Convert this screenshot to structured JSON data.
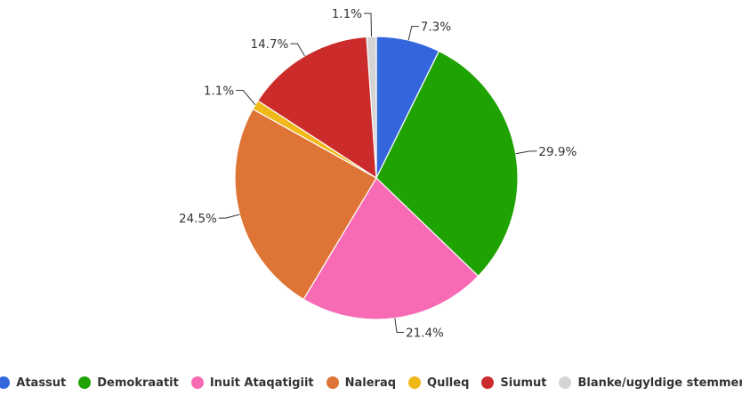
{
  "chart_data": {
    "type": "pie",
    "title": "",
    "slices": [
      {
        "name": "Atassut",
        "value": 7.3,
        "label": "7.3%",
        "color": "#3366dd"
      },
      {
        "name": "Demokraatit",
        "value": 29.9,
        "label": "29.9%",
        "color": "#1fa302"
      },
      {
        "name": "Inuit Ataqatigiit",
        "value": 21.4,
        "label": "21.4%",
        "color": "#f76ab4"
      },
      {
        "name": "Naleraq",
        "value": 24.5,
        "label": "24.5%",
        "color": "#de7436"
      },
      {
        "name": "Qulleq",
        "value": 1.1,
        "label": "1.1%",
        "color": "#f0b818"
      },
      {
        "name": "Siumut",
        "value": 14.7,
        "label": "14.7%",
        "color": "#cc2b2b"
      },
      {
        "name": "Blanke/ugyldige stemmer",
        "value": 1.1,
        "label": "1.1%",
        "color": "#d4d4d4"
      }
    ],
    "legend_position": "bottom"
  }
}
